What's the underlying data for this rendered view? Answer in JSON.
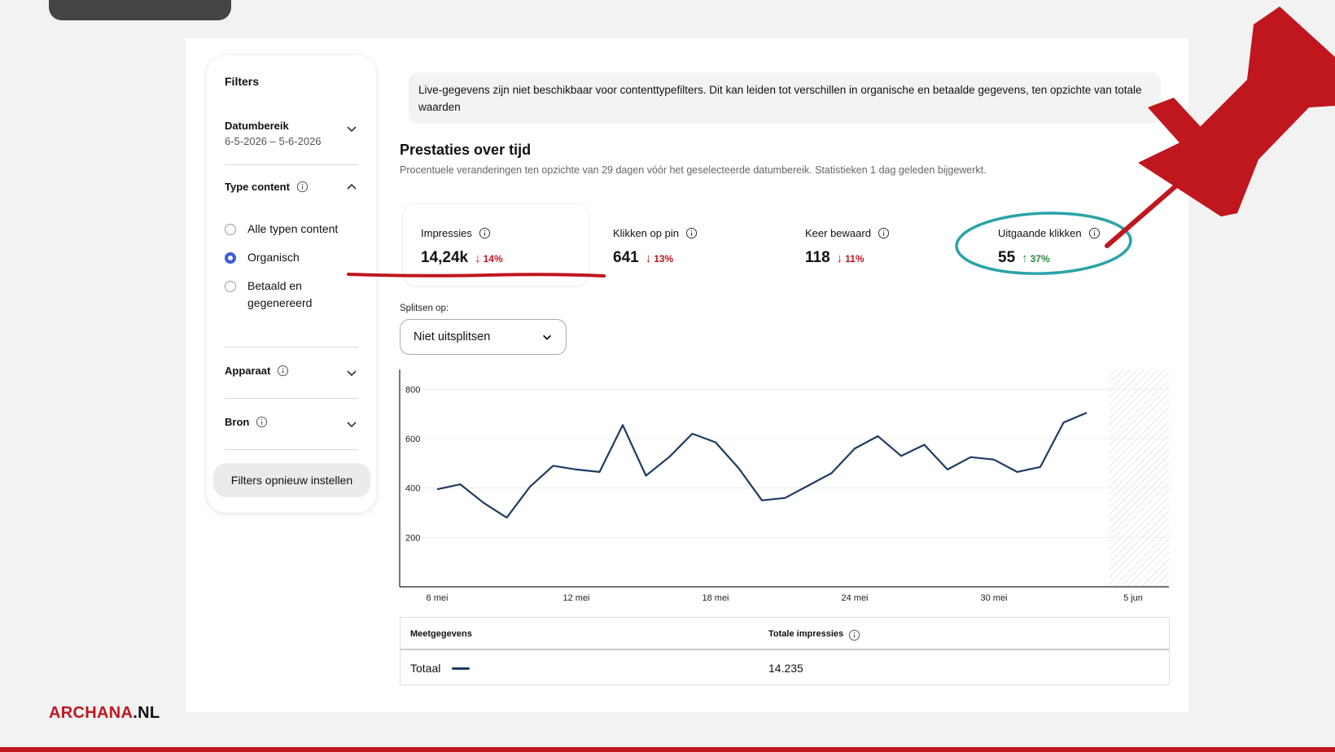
{
  "sidebar": {
    "title": "Filters",
    "date_range": {
      "label": "Datumbereik",
      "value": "6-5-2026 – 5-6-2026"
    },
    "content_type": {
      "label": "Type content",
      "options": [
        {
          "label": "Alle typen content",
          "checked": false
        },
        {
          "label": "Organisch",
          "checked": true
        },
        {
          "label": "Betaald en gegenereerd",
          "checked": false
        }
      ]
    },
    "device": {
      "label": "Apparaat"
    },
    "source": {
      "label": "Bron"
    },
    "reset_label": "Filters opnieuw instellen"
  },
  "notice": "Live-gegevens zijn niet beschikbaar voor contenttypefilters. Dit kan leiden tot verschillen in organische en betaalde gegevens, ten opzichte van totale waarden",
  "performance": {
    "title": "Prestaties over tijd",
    "subtitle": "Procentuele veranderingen ten opzichte van 29 dagen vóór het geselecteerde datumbereik. Statistieken 1 dag geleden bijgewerkt."
  },
  "metrics": [
    {
      "label": "Impressies",
      "value": "14,24k",
      "change": "14%",
      "direction": "down",
      "selected": true
    },
    {
      "label": "Klikken op pin",
      "value": "641",
      "change": "13%",
      "direction": "down",
      "selected": false
    },
    {
      "label": "Keer bewaard",
      "value": "118",
      "change": "11%",
      "direction": "down",
      "selected": false
    },
    {
      "label": "Uitgaande klikken",
      "value": "55",
      "change": "37%",
      "direction": "up",
      "selected": false
    }
  ],
  "split": {
    "label": "Splitsen op:",
    "selected": "Niet uitsplitsen"
  },
  "chart_data": {
    "type": "line",
    "x_ticks": [
      "6 mei",
      "12 mei",
      "18 mei",
      "24 mei",
      "30 mei",
      "5 jun"
    ],
    "y_ticks": [
      200,
      400,
      600,
      800
    ],
    "ylim": [
      0,
      880
    ],
    "series": [
      {
        "values": [
          395,
          415,
          340,
          280,
          405,
          490,
          475,
          465,
          655,
          450,
          525,
          620,
          585,
          480,
          350,
          360,
          410,
          460,
          560,
          610,
          530,
          575,
          475,
          525,
          515,
          465,
          485,
          665,
          705
        ]
      }
    ],
    "line_color": "#1f3b63"
  },
  "table": {
    "headers": [
      "Meetgegevens",
      "Totale impressies"
    ],
    "rows": [
      {
        "metric": "Totaal",
        "value": "14.235"
      }
    ]
  },
  "brand": {
    "part1": "ARCHANA",
    "part2": ".NL"
  },
  "colors": {
    "accent_red": "#c0161e",
    "radio_blue": "#3b5bdb",
    "circle_teal": "#2aa3a8",
    "line_navy": "#1f3b63"
  }
}
